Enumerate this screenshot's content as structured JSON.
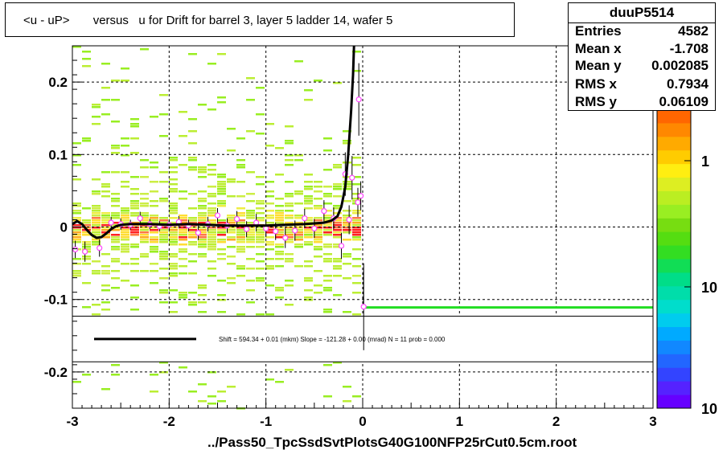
{
  "title": "<u - uP>       versus   u for Drift for barrel 3, layer 5 ladder 14, wafer 5",
  "stats": {
    "name": "duuP5514",
    "rows": [
      {
        "label": "Entries",
        "value": "4582"
      },
      {
        "label": "Mean x",
        "value": "-1.708"
      },
      {
        "label": "Mean y",
        "value": "0.002085"
      },
      {
        "label": "RMS x",
        "value": "0.7934"
      },
      {
        "label": "RMS y",
        "value": "0.06109"
      }
    ]
  },
  "footer": "../Pass50_TpcSsdSvtPlotsG40G100NFP25rCut0.5cm.root",
  "legend_text": "Shift =    594.34 + 0.01 (mkm) Slope =  -121.28 + 0.00 (mrad)  N = 11 prob = 0.000",
  "colors": {
    "fit": "#000000",
    "side_line": "#22dd22",
    "points": "#ff44ff"
  },
  "chart_data": {
    "type": "heatmap",
    "xlim": [
      -3,
      3
    ],
    "ylim": [
      -0.25,
      0.25
    ],
    "x_ticks": [
      {
        "v": -3,
        "label": "-3"
      },
      {
        "v": -2,
        "label": "-2"
      },
      {
        "v": -1,
        "label": "-1"
      },
      {
        "v": 0,
        "label": "0"
      },
      {
        "v": 1,
        "label": "1"
      },
      {
        "v": 2,
        "label": "2"
      },
      {
        "v": 3,
        "label": "3"
      }
    ],
    "y_ticks": [
      {
        "v": 0.2,
        "label": "0.2"
      },
      {
        "v": 0.1,
        "label": "0.1"
      },
      {
        "v": 0,
        "label": "0"
      },
      {
        "v": -0.1,
        "label": "-0.1"
      },
      {
        "v": -0.2,
        "label": "-0.2"
      }
    ],
    "colorbar_ticks": [
      "1",
      "10",
      "10"
    ],
    "grid": true,
    "profile_points": [
      {
        "x": -2.97,
        "y": -0.031,
        "e": 0.012
      },
      {
        "x": -2.87,
        "y": -0.034,
        "e": 0.014
      },
      {
        "x": -2.72,
        "y": -0.029,
        "e": 0.012
      },
      {
        "x": -2.6,
        "y": 0.006,
        "e": 0.008
      },
      {
        "x": -2.5,
        "y": 0.004,
        "e": 0.008
      },
      {
        "x": -2.4,
        "y": 0.003,
        "e": 0.007
      },
      {
        "x": -2.3,
        "y": 0.012,
        "e": 0.009
      },
      {
        "x": -2.2,
        "y": 0.004,
        "e": 0.007
      },
      {
        "x": -2.1,
        "y": 0.001,
        "e": 0.007
      },
      {
        "x": -2.0,
        "y": 0.003,
        "e": 0.007
      },
      {
        "x": -1.9,
        "y": 0.007,
        "e": 0.008
      },
      {
        "x": -1.8,
        "y": 0.002,
        "e": 0.008
      },
      {
        "x": -1.7,
        "y": -0.008,
        "e": 0.01
      },
      {
        "x": -1.6,
        "y": 0.004,
        "e": 0.01
      },
      {
        "x": -1.5,
        "y": 0.016,
        "e": 0.01
      },
      {
        "x": -1.4,
        "y": 0.002,
        "e": 0.01
      },
      {
        "x": -1.3,
        "y": 0.011,
        "e": 0.011
      },
      {
        "x": -1.2,
        "y": -0.003,
        "e": 0.011
      },
      {
        "x": -1.1,
        "y": 0.006,
        "e": 0.012
      },
      {
        "x": -1.0,
        "y": -0.002,
        "e": 0.012
      },
      {
        "x": -0.9,
        "y": -0.006,
        "e": 0.012
      },
      {
        "x": -0.8,
        "y": -0.015,
        "e": 0.014
      },
      {
        "x": -0.7,
        "y": -0.005,
        "e": 0.014
      },
      {
        "x": -0.6,
        "y": 0.012,
        "e": 0.013
      },
      {
        "x": -0.5,
        "y": -0.002,
        "e": 0.013
      },
      {
        "x": -0.4,
        "y": 0.022,
        "e": 0.015
      },
      {
        "x": -0.3,
        "y": 0.012,
        "e": 0.015
      },
      {
        "x": -0.22,
        "y": -0.026,
        "e": 0.018
      },
      {
        "x": -0.18,
        "y": 0.073,
        "e": 0.03
      },
      {
        "x": -0.14,
        "y": 0.01,
        "e": 0.02
      },
      {
        "x": -0.11,
        "y": 0.068,
        "e": 0.03
      },
      {
        "x": -0.05,
        "y": 0.034,
        "e": 0.02
      },
      {
        "x": -0.02,
        "y": 0.043,
        "e": 0.02
      },
      {
        "x": -0.04,
        "y": 0.176,
        "e": 0.05
      },
      {
        "x": 0.01,
        "y": -0.11,
        "e": 0.06
      }
    ],
    "fit_curve": [
      [
        -3.0,
        0.004
      ],
      [
        -2.95,
        0.008
      ],
      [
        -2.9,
        0.004
      ],
      [
        -2.85,
        -0.004
      ],
      [
        -2.8,
        -0.011
      ],
      [
        -2.75,
        -0.015
      ],
      [
        -2.7,
        -0.014
      ],
      [
        -2.65,
        -0.009
      ],
      [
        -2.6,
        -0.003
      ],
      [
        -2.55,
        0.001
      ],
      [
        -2.5,
        0.003
      ],
      [
        -2.4,
        0.004
      ],
      [
        -2.3,
        0.004
      ],
      [
        -2.2,
        0.004
      ],
      [
        -2.0,
        0.003
      ],
      [
        -1.8,
        0.004
      ],
      [
        -1.6,
        0.003
      ],
      [
        -1.4,
        0.002
      ],
      [
        -1.2,
        0.002
      ],
      [
        -1.0,
        0.002
      ],
      [
        -0.8,
        0.003
      ],
      [
        -0.6,
        0.004
      ],
      [
        -0.4,
        0.006
      ],
      [
        -0.32,
        0.009
      ],
      [
        -0.26,
        0.015
      ],
      [
        -0.22,
        0.028
      ],
      [
        -0.18,
        0.055
      ],
      [
        -0.15,
        0.1
      ],
      [
        -0.12,
        0.16
      ],
      [
        -0.1,
        0.21
      ],
      [
        -0.09,
        0.25
      ]
    ],
    "side_line": {
      "x0": 0.0,
      "x1": 3.0,
      "y": -0.111
    },
    "legend": {
      "series": "fit",
      "y_top": -0.123,
      "y_bottom": -0.186
    }
  }
}
